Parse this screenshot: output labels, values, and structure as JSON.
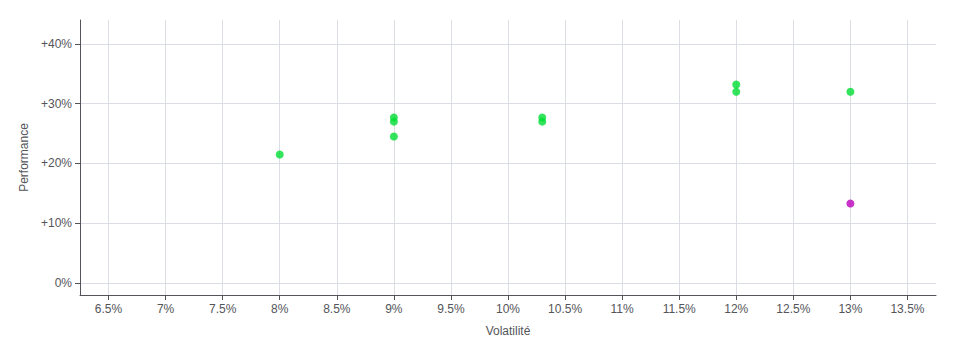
{
  "chart_data": {
    "type": "scatter",
    "xlabel": "Volatilité",
    "ylabel": "Performance",
    "xlim": [
      0.0625,
      0.1375
    ],
    "ylim": [
      -0.02,
      0.44
    ],
    "xticks": [
      {
        "value": 0.065,
        "label": "6.5%"
      },
      {
        "value": 0.07,
        "label": "7%"
      },
      {
        "value": 0.075,
        "label": "7.5%"
      },
      {
        "value": 0.08,
        "label": "8%"
      },
      {
        "value": 0.085,
        "label": "8.5%"
      },
      {
        "value": 0.09,
        "label": "9%"
      },
      {
        "value": 0.095,
        "label": "9.5%"
      },
      {
        "value": 0.1,
        "label": "10%"
      },
      {
        "value": 0.105,
        "label": "10.5%"
      },
      {
        "value": 0.11,
        "label": "11%"
      },
      {
        "value": 0.115,
        "label": "11.5%"
      },
      {
        "value": 0.12,
        "label": "12%"
      },
      {
        "value": 0.125,
        "label": "12.5%"
      },
      {
        "value": 0.13,
        "label": "13%"
      },
      {
        "value": 0.135,
        "label": "13.5%"
      }
    ],
    "yticks": [
      {
        "value": 0.0,
        "label": "0%"
      },
      {
        "value": 0.1,
        "label": "+10%"
      },
      {
        "value": 0.2,
        "label": "+20%"
      },
      {
        "value": 0.3,
        "label": "+30%"
      },
      {
        "value": 0.4,
        "label": "+40%"
      }
    ],
    "grid": true,
    "series": [
      {
        "color": "#00dd33",
        "x": [
          0.08,
          0.09,
          0.09,
          0.09,
          0.103,
          0.103,
          0.12,
          0.12,
          0.13
        ],
        "values": [
          0.215,
          0.245,
          0.27,
          0.277,
          0.27,
          0.277,
          0.32,
          0.332,
          0.32
        ]
      },
      {
        "color": "#bb00bb",
        "x": [
          0.13
        ],
        "values": [
          0.133
        ]
      }
    ]
  }
}
